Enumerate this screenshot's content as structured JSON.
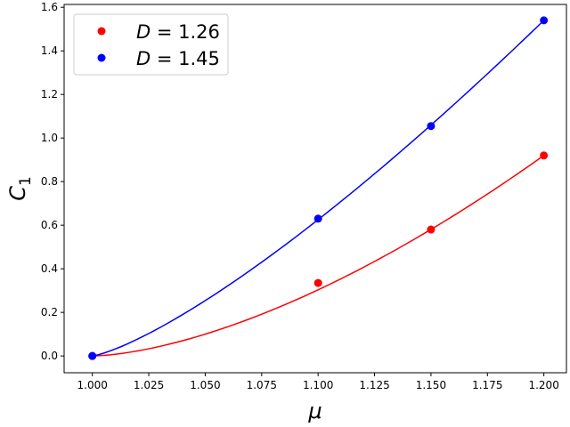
{
  "chart_data": {
    "type": "scatter",
    "xlabel": "μ",
    "ylabel": "C",
    "ylabel_subscript": "1",
    "xlim": [
      0.9875,
      1.21
    ],
    "ylim": [
      -0.077,
      1.613
    ],
    "grid": false,
    "legend_position": "upper-left",
    "x_ticks": [
      "1.000",
      "1.025",
      "1.050",
      "1.075",
      "1.100",
      "1.125",
      "1.150",
      "1.175",
      "1.200"
    ],
    "y_ticks": [
      "0.0",
      "0.2",
      "0.4",
      "0.6",
      "0.8",
      "1.0",
      "1.2",
      "1.4",
      "1.6"
    ],
    "series": [
      {
        "name": "D = 1.26",
        "legend_var": "D",
        "legend_value": "1.26",
        "color": "#ff0000",
        "x": [
          1.0,
          1.1,
          1.15,
          1.2
        ],
        "y": [
          0.0,
          0.335,
          0.58,
          0.92
        ],
        "fit_exponent": 1.6
      },
      {
        "name": "D = 1.45",
        "legend_var": "D",
        "legend_value": "1.45",
        "color": "#0000ff",
        "x": [
          1.0,
          1.1,
          1.15,
          1.2
        ],
        "y": [
          0.0,
          0.63,
          1.055,
          1.54
        ],
        "fit_exponent": 1.3
      }
    ]
  }
}
